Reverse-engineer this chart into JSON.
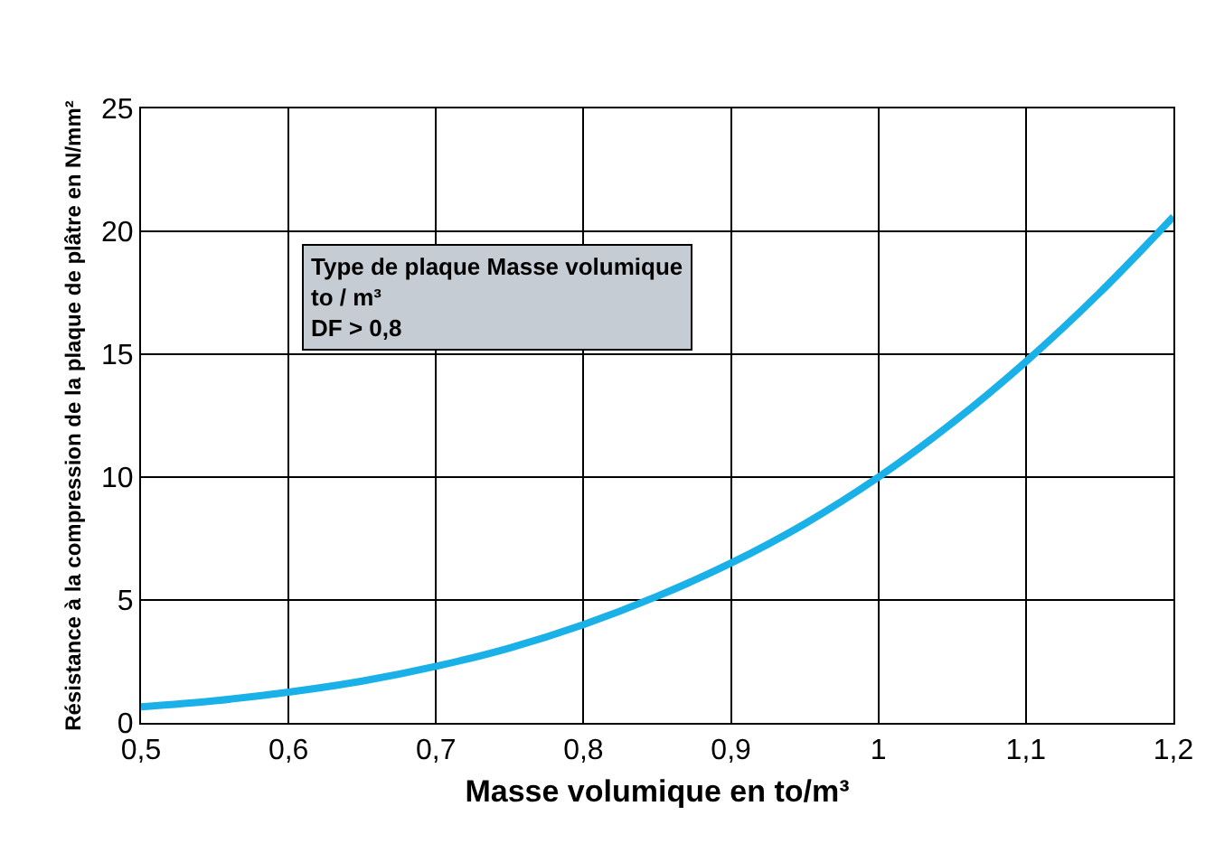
{
  "chart_data": {
    "type": "line",
    "xlabel": "Masse volumique en to/m³",
    "ylabel": "Résistance à la compression de la plaque de plâtre en N/mm²",
    "x": [
      0.5,
      0.55,
      0.6,
      0.65,
      0.7,
      0.75,
      0.8,
      0.85,
      0.9,
      0.95,
      1.0,
      1.05,
      1.1,
      1.15,
      1.2
    ],
    "series": [
      {
        "color": "#1ab0e8",
        "values": [
          0.65,
          0.9,
          1.25,
          1.7,
          2.3,
          3.05,
          4.0,
          5.15,
          6.5,
          8.1,
          10.0,
          12.2,
          14.7,
          17.5,
          20.6
        ]
      }
    ],
    "xlim": [
      0.5,
      1.2
    ],
    "ylim": [
      0,
      25
    ],
    "xticks": [
      {
        "value": 0.5,
        "label": "0,5"
      },
      {
        "value": 0.6,
        "label": "0,6"
      },
      {
        "value": 0.7,
        "label": "0,7"
      },
      {
        "value": 0.8,
        "label": "0,8"
      },
      {
        "value": 0.9,
        "label": "0,9"
      },
      {
        "value": 1.0,
        "label": "1"
      },
      {
        "value": 1.1,
        "label": "1,1"
      },
      {
        "value": 1.2,
        "label": "1,2"
      }
    ],
    "yticks": [
      0,
      5,
      10,
      15,
      20,
      25
    ],
    "grid": true,
    "marker": "none",
    "line_style": "solid",
    "annotations": [
      "Type de plaque",
      "Masse volumique\nto / m³",
      "DF",
      "> 0,8"
    ]
  }
}
